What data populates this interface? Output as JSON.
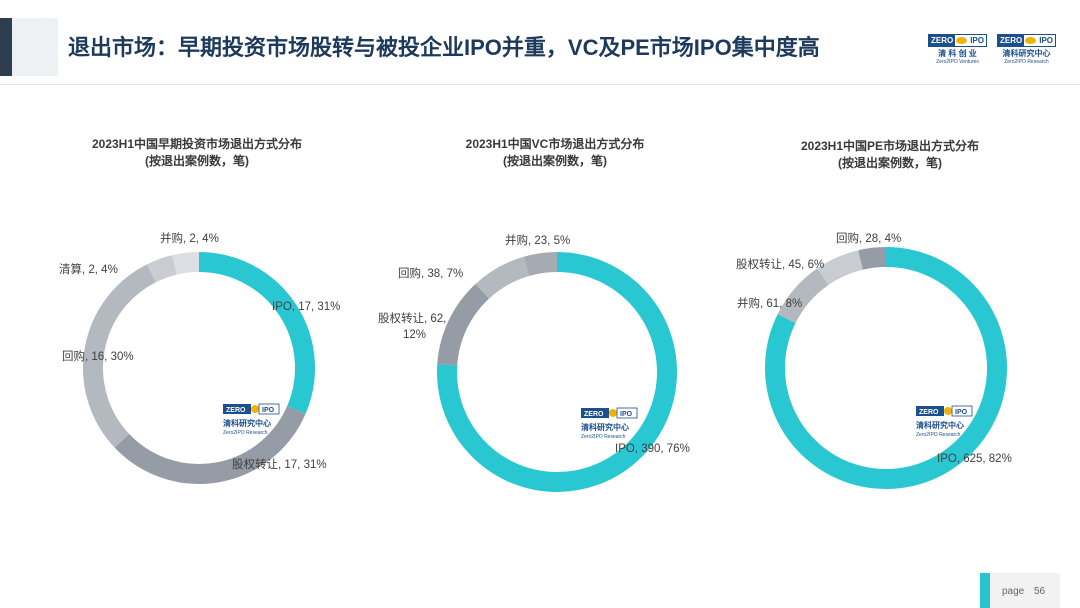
{
  "header": {
    "title": "退出市场：早期投资市场股转与被投企业IPO并重，VC及PE市场IPO集中度高",
    "logos": [
      {
        "badge_left": "ZERO",
        "badge_right": "IPO",
        "cn": "清 科 创 业",
        "en": "Zero2IPO Ventures"
      },
      {
        "badge_left": "ZERO",
        "badge_right": "IPO",
        "cn": "清科研究中心",
        "en": "Zero2IPO Research"
      }
    ]
  },
  "watermark": {
    "badge_left": "ZERO",
    "badge_right": "IPO",
    "cn": "清科研究中心",
    "en": "Zero2IPO Research"
  },
  "footer": {
    "page_label": "page",
    "page_number": "56"
  },
  "colors": {
    "ipo": "#29c7d2",
    "equity_transfer": "#959ca6",
    "buyback": "#b4b9c0",
    "liquidation": "#c9cdd2",
    "merger": "#dcdfe3",
    "title": "#1d3a5c"
  },
  "chart_data": [
    {
      "type": "pie",
      "subtype": "donut",
      "title_line1": "2023H1中国早期投资市场退出方式分布",
      "title_line2": "(按退出案例数，笔)",
      "slices": [
        {
          "name": "IPO",
          "value": 17,
          "pct": 31,
          "label": "IPO, 17, 31%",
          "color": "#29c7d2"
        },
        {
          "name": "股权转让",
          "value": 17,
          "pct": 31,
          "label": "股权转让, 17, 31%",
          "color": "#959ca6"
        },
        {
          "name": "回购",
          "value": 16,
          "pct": 30,
          "label": "回购, 16, 30%",
          "color": "#b4b9c0"
        },
        {
          "name": "清算",
          "value": 2,
          "pct": 4,
          "label": "清算, 2, 4%",
          "color": "#c9cdd2"
        },
        {
          "name": "并购",
          "value": 2,
          "pct": 4,
          "label": "并购, 2, 4%",
          "color": "#dcdfe3"
        }
      ]
    },
    {
      "type": "pie",
      "subtype": "donut",
      "title_line1": "2023H1中国VC市场退出方式分布",
      "title_line2": "(按退出案例数，笔)",
      "slices": [
        {
          "name": "IPO",
          "value": 390,
          "pct": 76,
          "label": "IPO, 390, 76%",
          "color": "#29c7d2"
        },
        {
          "name": "股权转让",
          "value": 62,
          "pct": 12,
          "label": "股权转让, 62,",
          "label2": "12%",
          "color": "#959ca6"
        },
        {
          "name": "回购",
          "value": 38,
          "pct": 7,
          "label": "回购, 38, 7%",
          "color": "#b4b9c0"
        },
        {
          "name": "并购",
          "value": 23,
          "pct": 5,
          "label": "并购, 23, 5%",
          "color": "#a5abb3"
        }
      ]
    },
    {
      "type": "pie",
      "subtype": "donut",
      "title_line1": "2023H1中国PE市场退出方式分布",
      "title_line2": "(按退出案例数，笔)",
      "slices": [
        {
          "name": "IPO",
          "value": 625,
          "pct": 82,
          "label": "IPO, 625, 82%",
          "color": "#29c7d2"
        },
        {
          "name": "并购",
          "value": 61,
          "pct": 8,
          "label": "并购, 61, 8%",
          "color": "#b4b9c0"
        },
        {
          "name": "股权转让",
          "value": 45,
          "pct": 6,
          "label": "股权转让, 45, 6%",
          "color": "#c9cdd2"
        },
        {
          "name": "回购",
          "value": 28,
          "pct": 4,
          "label": "回购, 28, 4%",
          "color": "#959ca6"
        }
      ]
    }
  ]
}
